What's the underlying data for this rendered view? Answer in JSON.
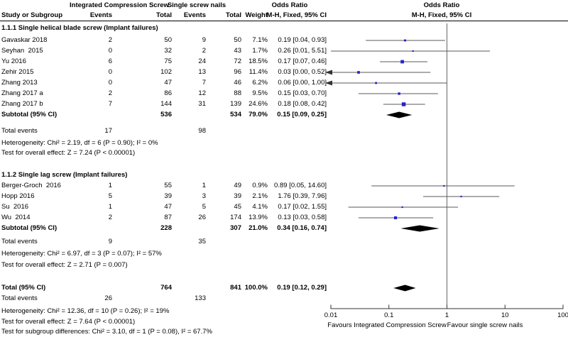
{
  "columns": {
    "study_or_subgroup": "Study or Subgroup",
    "events": "Events",
    "total": "Total",
    "weight": "Weight",
    "mh_fixed": "M-H, Fixed, 95% CI",
    "odds_ratio": "Odds Ratio"
  },
  "chart_data": {
    "type": "scatter",
    "subtype": "forest_plot_meta_analysis",
    "comparison": {
      "treatment": "Integrated Compression Screw",
      "control": "Single screw nails"
    },
    "effect_measure": "Odds Ratio",
    "method": "M-H, Fixed, 95% CI",
    "x_scale": "log",
    "xlim": [
      0.01,
      100
    ],
    "x_ticks": [
      "0.01",
      "0.1",
      "1",
      "10",
      "100"
    ],
    "footer_left": "Favours Integrated Compression Screw",
    "footer_right": "Favour single screw nails",
    "groups": [
      {
        "title": "1.1.1 Single helical blade screw (Implant failures)",
        "studies": [
          {
            "study": "Gavaskar 2018",
            "events_1": "2",
            "total_1": "50",
            "events_2": "9",
            "total_2": "50",
            "weight": "7.1%",
            "ci_text": "0.19 [0.04, 0.93]",
            "or": 0.19,
            "lo": 0.04,
            "hi": 0.93,
            "weight_pct": 7.1
          },
          {
            "study": "Seyhan  2015",
            "events_1": "0",
            "total_1": "32",
            "events_2": "2",
            "total_2": "43",
            "weight": "1.7%",
            "ci_text": "0.26 [0.01, 5.51]",
            "or": 0.26,
            "lo": 0.01,
            "hi": 5.51,
            "weight_pct": 1.7
          },
          {
            "study": "Yu 2016",
            "events_1": "6",
            "total_1": "75",
            "events_2": "24",
            "total_2": "72",
            "weight": "18.5%",
            "ci_text": "0.17 [0.07, 0.46]",
            "or": 0.17,
            "lo": 0.07,
            "hi": 0.46,
            "weight_pct": 18.5
          },
          {
            "study": "Zehir 2015",
            "events_1": "0",
            "total_1": "102",
            "events_2": "13",
            "total_2": "96",
            "weight": "11.4%",
            "ci_text": "0.03 [0.00, 0.52]",
            "or": 0.03,
            "lo": 0.0,
            "hi": 0.52,
            "weight_pct": 11.4
          },
          {
            "study": "Zhang 2013",
            "events_1": "0",
            "total_1": "47",
            "events_2": "7",
            "total_2": "46",
            "weight": "6.2%",
            "ci_text": "0.06 [0.00, 1.00]",
            "or": 0.06,
            "lo": 0.0,
            "hi": 1.0,
            "weight_pct": 6.2
          },
          {
            "study": "Zhang 2017 a",
            "events_1": "2",
            "total_1": "86",
            "events_2": "12",
            "total_2": "88",
            "weight": "9.5%",
            "ci_text": "0.15 [0.03, 0.70]",
            "or": 0.15,
            "lo": 0.03,
            "hi": 0.7,
            "weight_pct": 9.5
          },
          {
            "study": "Zhang 2017 b",
            "events_1": "7",
            "total_1": "144",
            "events_2": "31",
            "total_2": "139",
            "weight": "24.6%",
            "ci_text": "0.18 [0.08, 0.42]",
            "or": 0.18,
            "lo": 0.08,
            "hi": 0.42,
            "weight_pct": 24.6
          }
        ],
        "subtotal": {
          "label": "Subtotal (95% CI)",
          "total_1": "536",
          "total_2": "534",
          "weight": "79.0%",
          "ci_text": "0.15 [0.09, 0.25]",
          "or": 0.15,
          "lo": 0.09,
          "hi": 0.25
        },
        "total_events": {
          "label": "Total events",
          "events_1": "17",
          "events_2": "98"
        },
        "heterogeneity": "Heterogeneity: Chi² = 2.19, df = 6 (P = 0.90); I² = 0%",
        "overall_effect": "Test for overall effect: Z = 7.24 (P < 0.00001)"
      },
      {
        "title": "1.1.2 Single lag screw (Implant failures)",
        "studies": [
          {
            "study": "Berger-Groch  2016",
            "events_1": "1",
            "total_1": "55",
            "events_2": "1",
            "total_2": "49",
            "weight": "0.9%",
            "ci_text": "0.89 [0.05, 14.60]",
            "or": 0.89,
            "lo": 0.05,
            "hi": 14.6,
            "weight_pct": 0.9
          },
          {
            "study": "Hopp 2016",
            "events_1": "5",
            "total_1": "39",
            "events_2": "3",
            "total_2": "39",
            "weight": "2.1%",
            "ci_text": "1.76 [0.39, 7.96]",
            "or": 1.76,
            "lo": 0.39,
            "hi": 7.96,
            "weight_pct": 2.1
          },
          {
            "study": "Su  2016",
            "events_1": "1",
            "total_1": "47",
            "events_2": "5",
            "total_2": "45",
            "weight": "4.1%",
            "ci_text": "0.17 [0.02, 1.55]",
            "or": 0.17,
            "lo": 0.02,
            "hi": 1.55,
            "weight_pct": 4.1
          },
          {
            "study": "Wu  2014",
            "events_1": "2",
            "total_1": "87",
            "events_2": "26",
            "total_2": "174",
            "weight": "13.9%",
            "ci_text": "0.13 [0.03, 0.58]",
            "or": 0.13,
            "lo": 0.03,
            "hi": 0.58,
            "weight_pct": 13.9
          }
        ],
        "subtotal": {
          "label": "Subtotal (95% CI)",
          "total_1": "228",
          "total_2": "307",
          "weight": "21.0%",
          "ci_text": "0.34 [0.16, 0.74]",
          "or": 0.34,
          "lo": 0.16,
          "hi": 0.74
        },
        "total_events": {
          "label": "Total events",
          "events_1": "9",
          "events_2": "35"
        },
        "heterogeneity": "Heterogeneity: Chi² = 6.97, df = 3 (P = 0.07); I² = 57%",
        "overall_effect": "Test for overall effect: Z = 2.71 (P = 0.007)"
      }
    ],
    "total": {
      "label": "Total (95% CI)",
      "total_1": "764",
      "total_2": "841",
      "weight": "100.0%",
      "ci_text": "0.19 [0.12, 0.29]",
      "or": 0.19,
      "lo": 0.12,
      "hi": 0.29,
      "total_events": {
        "label": "Total events",
        "events_1": "26",
        "events_2": "133"
      },
      "heterogeneity": "Heterogeneity: Chi² = 12.36, df = 10 (P = 0.26); I² = 19%",
      "overall_effect": "Test for overall effect: Z = 7.64 (P < 0.00001)",
      "subgroup_test": "Test for subgroup differences: Chi² = 3.10, df = 1 (P = 0.08), I² = 67.7%"
    }
  },
  "colors": {
    "square": "#2323d0",
    "diamond": "#000000",
    "ci_line": "#595959",
    "no_effect_line": "#666666",
    "axis": "#333333"
  }
}
